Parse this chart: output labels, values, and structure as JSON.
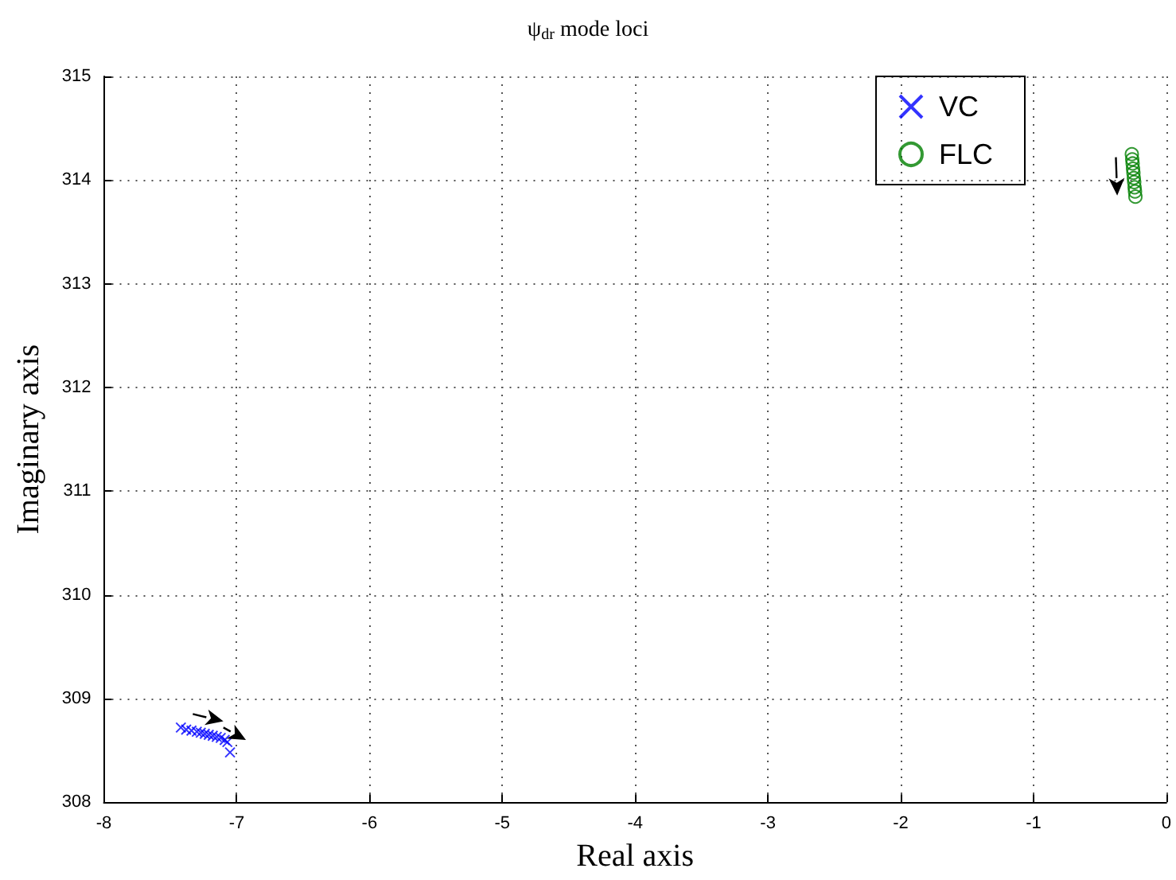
{
  "chart_data": {
    "type": "scatter",
    "title": "ψ$_{dr}$ mode loci",
    "xlabel": "Real axis",
    "ylabel": "Imaginary axis",
    "xlim": [
      -8,
      0
    ],
    "xticks": [
      -8,
      -7,
      -6,
      -5,
      -4,
      -3,
      -2,
      -1,
      0
    ],
    "ylim": [
      308,
      315
    ],
    "yticks": [
      308,
      309,
      310,
      311,
      312,
      313,
      314,
      315
    ],
    "grid": true,
    "legend": "top right",
    "series": [
      {
        "name": "VC",
        "color": "#0000ff",
        "marker": "cross",
        "x": [
          -7.42,
          -7.38,
          -7.34,
          -7.3,
          -7.27,
          -7.24,
          -7.21,
          -7.18,
          -7.15,
          -7.12,
          -7.09,
          -7.07,
          -7.05
        ],
        "values": [
          308.72,
          308.7,
          308.69,
          308.68,
          308.67,
          308.66,
          308.65,
          308.64,
          308.63,
          308.62,
          308.6,
          308.58,
          308.48
        ]
      },
      {
        "name": "FLC",
        "color": "#008000",
        "marker": "circle",
        "x": [
          -0.26,
          -0.257,
          -0.254,
          -0.251,
          -0.248,
          -0.245,
          -0.242,
          -0.239,
          -0.236,
          -0.233
        ],
        "values": [
          314.25,
          314.2,
          314.16,
          314.11,
          314.07,
          314.02,
          313.98,
          313.93,
          313.89,
          313.84
        ]
      }
    ]
  }
}
